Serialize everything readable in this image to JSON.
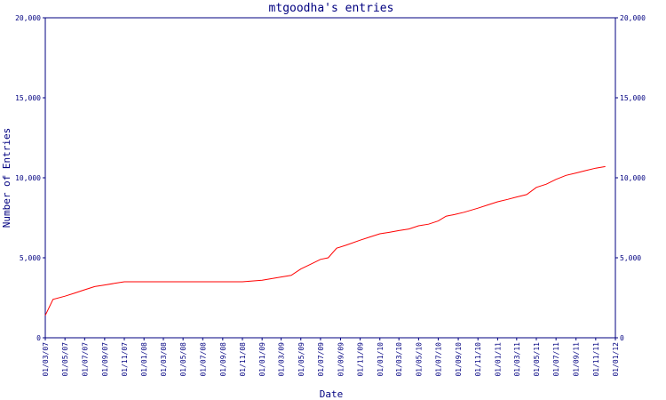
{
  "chart_data": {
    "type": "line",
    "title": "mtgoodha's entries",
    "xlabel": "Date",
    "ylabel": "Number of Entries",
    "ylim": [
      0,
      20000
    ],
    "yticks": [
      0,
      5000,
      10000,
      15000,
      20000
    ],
    "ytick_labels": [
      "0",
      "5,000",
      "10,000",
      "15,000",
      "20,000"
    ],
    "xlim": [
      "2007-03-01",
      "2012-01-01"
    ],
    "xtick_labels": [
      "01/03/07",
      "01/05/07",
      "01/07/07",
      "01/09/07",
      "01/11/07",
      "01/01/08",
      "01/03/08",
      "01/05/08",
      "01/07/08",
      "01/09/08",
      "01/11/08",
      "01/01/09",
      "01/03/09",
      "01/05/09",
      "01/07/09",
      "01/09/09",
      "01/11/09",
      "01/01/10",
      "01/03/10",
      "01/05/10",
      "01/07/10",
      "01/09/10",
      "01/11/10",
      "01/01/11",
      "01/03/11",
      "01/05/11",
      "01/07/11",
      "01/09/11",
      "01/11/11",
      "01/01/12"
    ],
    "xtick_dates": [
      "2007-03-01",
      "2007-05-01",
      "2007-07-01",
      "2007-09-01",
      "2007-11-01",
      "2008-01-01",
      "2008-03-01",
      "2008-05-01",
      "2008-07-01",
      "2008-09-01",
      "2008-11-01",
      "2009-01-01",
      "2009-03-01",
      "2009-05-01",
      "2009-07-01",
      "2009-09-01",
      "2009-11-01",
      "2010-01-01",
      "2010-03-01",
      "2010-05-01",
      "2010-07-01",
      "2010-09-01",
      "2010-11-01",
      "2011-01-01",
      "2011-03-01",
      "2011-05-01",
      "2011-07-01",
      "2011-09-01",
      "2011-11-01",
      "2012-01-01"
    ],
    "grid": false,
    "series": [
      {
        "color": "#ff0000",
        "x": [
          "2007-03-01",
          "2007-03-25",
          "2007-05-01",
          "2007-06-01",
          "2007-07-01",
          "2007-08-01",
          "2007-09-01",
          "2007-10-01",
          "2007-11-01",
          "2008-01-01",
          "2008-03-01",
          "2008-05-01",
          "2008-07-01",
          "2008-09-01",
          "2008-11-01",
          "2009-01-01",
          "2009-03-01",
          "2009-04-01",
          "2009-05-01",
          "2009-06-01",
          "2009-07-01",
          "2009-07-25",
          "2009-08-20",
          "2009-09-20",
          "2009-11-01",
          "2009-12-01",
          "2010-01-01",
          "2010-02-01",
          "2010-03-01",
          "2010-04-01",
          "2010-05-01",
          "2010-06-01",
          "2010-07-01",
          "2010-07-25",
          "2010-08-20",
          "2010-09-20",
          "2010-11-01",
          "2010-12-01",
          "2011-01-01",
          "2011-02-01",
          "2011-03-01",
          "2011-04-01",
          "2011-05-01",
          "2011-06-01",
          "2011-07-01",
          "2011-08-01",
          "2011-09-01",
          "2011-10-01",
          "2011-11-01",
          "2011-12-01"
        ],
        "y": [
          1400,
          2400,
          2600,
          2800,
          3000,
          3200,
          3300,
          3400,
          3500,
          3500,
          3500,
          3500,
          3500,
          3500,
          3500,
          3600,
          3800,
          3900,
          4300,
          4600,
          4900,
          5000,
          5600,
          5800,
          6100,
          6300,
          6500,
          6600,
          6700,
          6800,
          7000,
          7100,
          7300,
          7600,
          7700,
          7850,
          8100,
          8300,
          8500,
          8650,
          8800,
          8950,
          9400,
          9600,
          9900,
          10150,
          10300,
          10450,
          10600,
          10700
        ]
      }
    ]
  }
}
